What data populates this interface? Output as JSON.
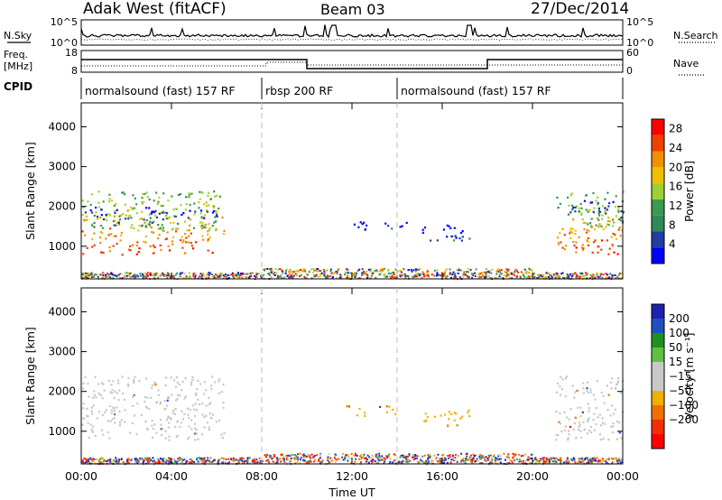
{
  "header": {
    "station": "Adak West (fitACF)",
    "beam": "Beam 03",
    "date": "27/Dec/2014"
  },
  "mini_panels": {
    "sky_label": "N.Sky",
    "sky_ticks": [
      "10^5",
      "10^0"
    ],
    "search_label": "N.Search",
    "search_ticks": [
      "10^5",
      "10^0"
    ],
    "freq_label_line1": "Freq.",
    "freq_label_line2": "[MHz]",
    "freq_ticks": [
      "18",
      "8"
    ],
    "nave_label": "Nave",
    "nave_ticks": [
      "60",
      "0"
    ],
    "cpid_label": "CPID"
  },
  "cpid_segments": [
    {
      "start_h": 0,
      "end_h": 8,
      "label": "normalsound (fast) 157 RF"
    },
    {
      "start_h": 8,
      "end_h": 14,
      "label": "rbsp 200 RF"
    },
    {
      "start_h": 14,
      "end_h": 24,
      "label": "normalsound (fast) 157 RF"
    }
  ],
  "x_axis": {
    "label": "Time UT",
    "ticks": [
      "00:00",
      "04:00",
      "08:00",
      "12:00",
      "16:00",
      "20:00",
      "00:00"
    ],
    "range_h": [
      0,
      24
    ]
  },
  "colors": {
    "power_scale": [
      "#0000ff",
      "#1e3fa0",
      "#2e8a58",
      "#3a9a50",
      "#a0d030",
      "#f0c000",
      "#f09000",
      "#f04000",
      "#ff0000"
    ],
    "velocity_scale": [
      "#2020b0",
      "#2050c0",
      "#209020",
      "#60c040",
      "#c8c8c8",
      "#c8c8c8",
      "#f0b000",
      "#f07000",
      "#f03000",
      "#ff0000"
    ]
  },
  "chart_data": [
    {
      "type": "heatmap",
      "title": "",
      "xlabel": "",
      "ylabel": "Slant Range [km]",
      "xlim_h": [
        0,
        24
      ],
      "ylim": [
        180,
        4600
      ],
      "yticks": [
        "1000",
        "2000",
        "3000",
        "4000"
      ],
      "colorbar_label": "Power [dB]",
      "colorbar_ticks": [
        "4",
        "8",
        "12",
        "16",
        "20",
        "24",
        "28"
      ],
      "colorbar_range": [
        0,
        30
      ],
      "regions": [
        {
          "t0": 0.0,
          "t1": 6.3,
          "r0": 800,
          "r1": 2400,
          "level": 26
        },
        {
          "t0": 0.0,
          "t1": 6.0,
          "r0": 1400,
          "r1": 2000,
          "level": 14
        },
        {
          "t0": 11.6,
          "t1": 12.6,
          "r0": 1400,
          "r1": 1700,
          "level": 8
        },
        {
          "t0": 13.2,
          "t1": 14.4,
          "r0": 1450,
          "r1": 1650,
          "level": 8
        },
        {
          "t0": 15.0,
          "t1": 17.2,
          "r0": 1150,
          "r1": 1550,
          "level": 8
        },
        {
          "t0": 21.0,
          "t1": 24.0,
          "r0": 800,
          "r1": 2400,
          "level": 26
        },
        {
          "t0": 21.5,
          "t1": 24.0,
          "r0": 1500,
          "r1": 2200,
          "level": 14
        }
      ]
    },
    {
      "type": "heatmap",
      "title": "",
      "xlabel": "Time UT",
      "ylabel": "Slant Range [km]",
      "xlim_h": [
        0,
        24
      ],
      "ylim": [
        180,
        4600
      ],
      "yticks": [
        "1000",
        "2000",
        "3000",
        "4000"
      ],
      "colorbar_label": "Velocity [m s⁻¹]",
      "colorbar_ticks": [
        "200",
        "100",
        "50",
        "15",
        "−15",
        "−50",
        "−100",
        "−200"
      ],
      "regions": [
        {
          "t0": 0.0,
          "t1": 6.3,
          "r0": 800,
          "r1": 2400,
          "level": 0
        },
        {
          "t0": 11.6,
          "t1": 12.6,
          "r0": 1400,
          "r1": 1700,
          "level": -50
        },
        {
          "t0": 13.2,
          "t1": 14.4,
          "r0": 1450,
          "r1": 1650,
          "level": -50
        },
        {
          "t0": 15.0,
          "t1": 17.2,
          "r0": 1150,
          "r1": 1550,
          "level": -50
        },
        {
          "t0": 21.0,
          "t1": 24.0,
          "r0": 800,
          "r1": 2400,
          "level": 0
        }
      ]
    }
  ]
}
